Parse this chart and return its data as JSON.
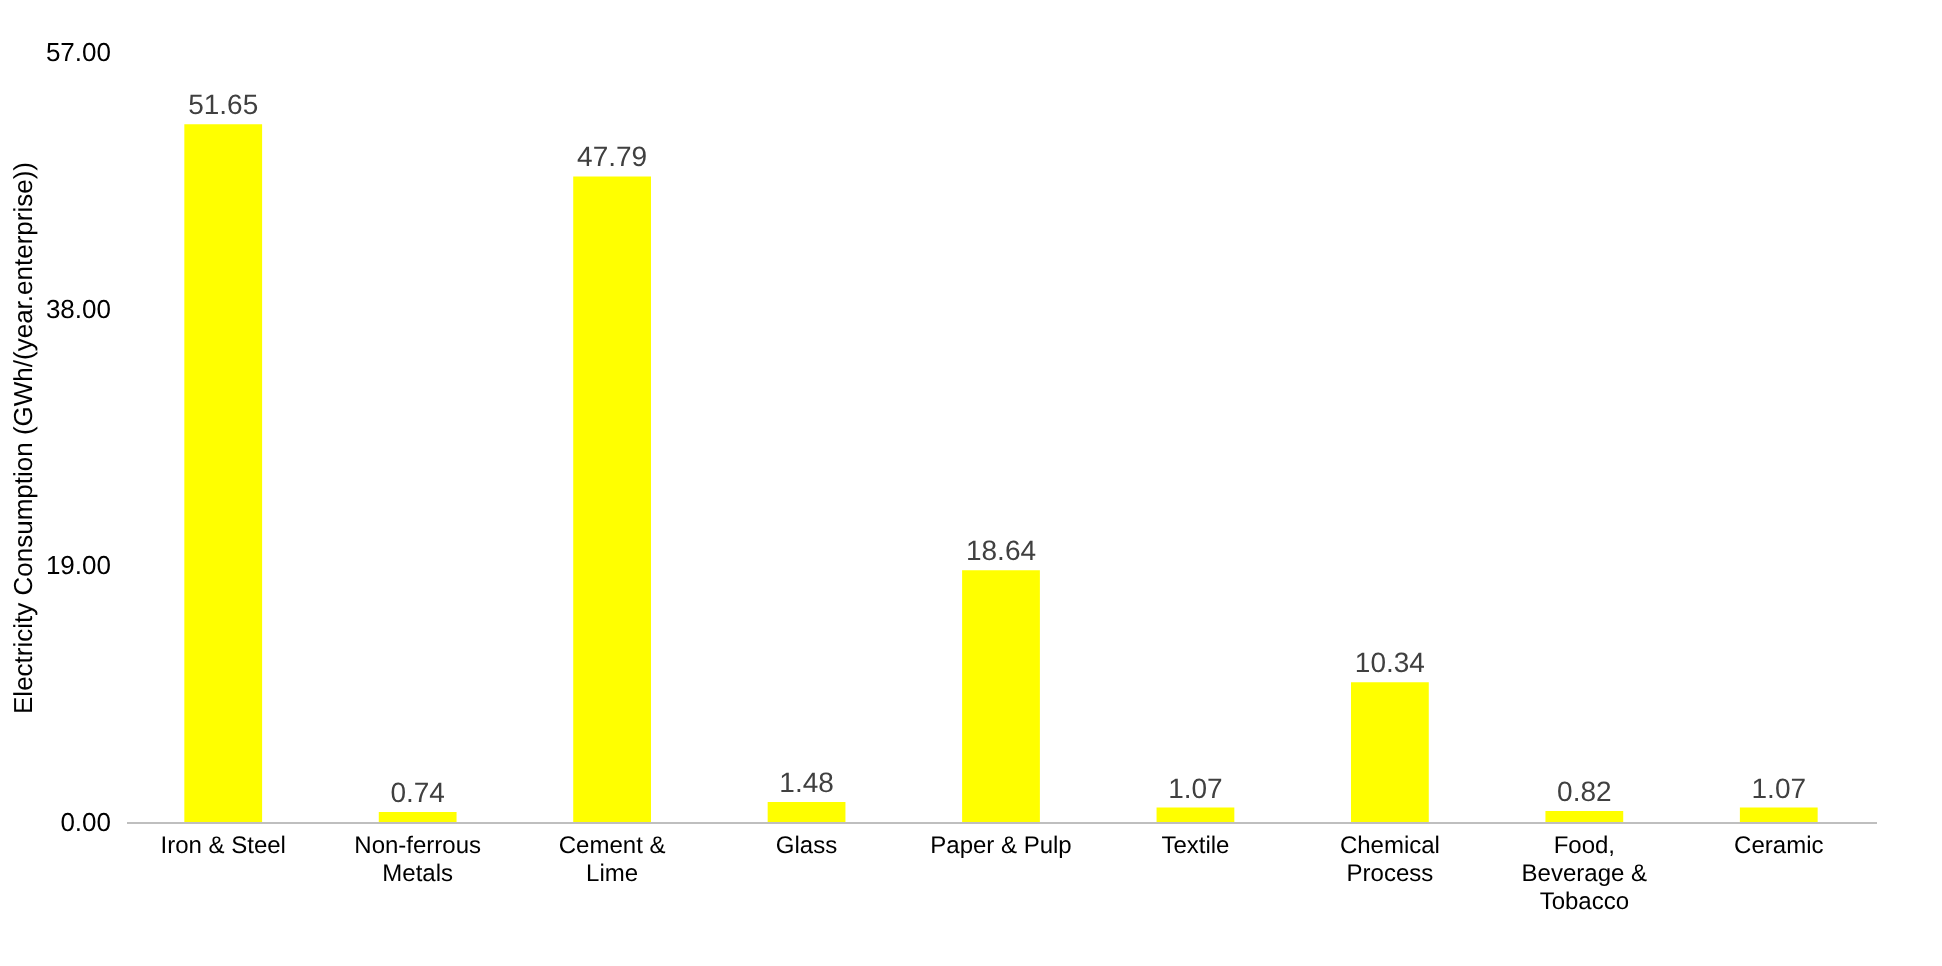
{
  "chart_data": {
    "type": "bar",
    "ylabel": "Electricity Consumption (GWh/(year.enterprise))",
    "categories": [
      "Iron & Steel",
      "Non-ferrous Metals",
      "Cement & Lime",
      "Glass",
      "Paper & Pulp",
      "Textile",
      "Chemical Process",
      "Food, Beverage & Tobacco",
      "Ceramic"
    ],
    "values": [
      51.65,
      0.74,
      47.79,
      1.48,
      18.64,
      1.07,
      10.34,
      0.82,
      1.07
    ],
    "color": "#ffff00",
    "ylim": [
      0,
      57
    ],
    "yticks": [
      {
        "value": 0,
        "label": "0.00"
      },
      {
        "value": 19,
        "label": "19.00"
      },
      {
        "value": 38,
        "label": "38.00"
      },
      {
        "value": 57,
        "label": "57.00"
      }
    ],
    "data_labels": true,
    "grid": false
  }
}
